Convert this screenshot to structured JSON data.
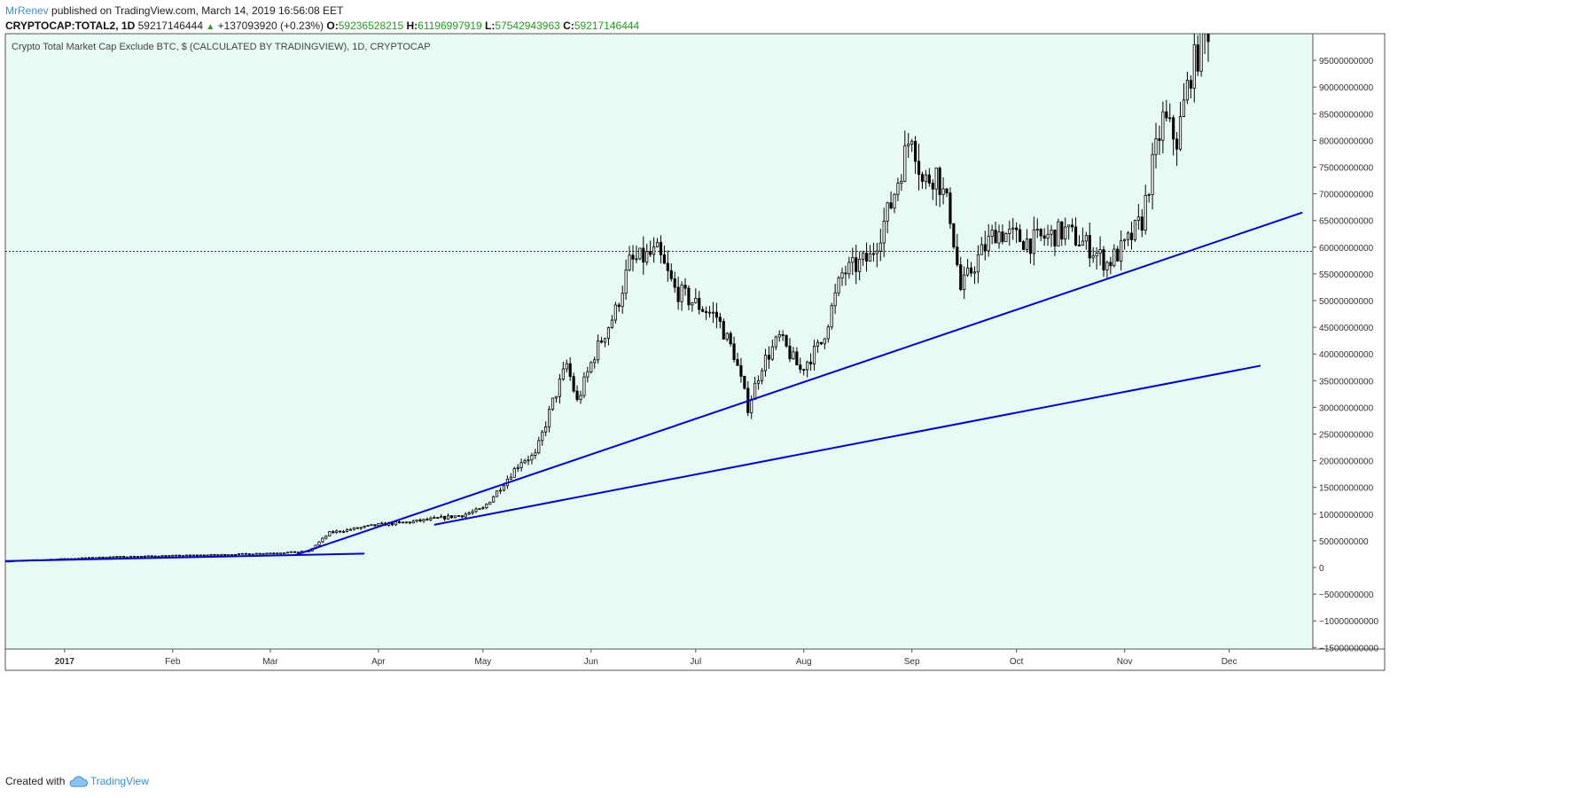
{
  "header": {
    "author": "MrRenev",
    "published_text": "published on TradingView.com, March 14, 2019 16:56:08 EET",
    "symbol": "CRYPTOCAP:TOTAL2, 1D",
    "last": "59217146444",
    "change": "+137093920 (+0.23%)",
    "o_label": "O:",
    "o_value": "59236528215",
    "h_label": "H:",
    "h_value": "61196997919",
    "l_label": "L:",
    "l_value": "57542943963",
    "c_label": "C:",
    "c_value": "59217146444"
  },
  "footer": {
    "created_with": "Created with",
    "brand": "TradingView"
  },
  "colors": {
    "chart_bg": "#e8fbf2",
    "candle": "#000000",
    "trendline": "#0000d8",
    "accent": "#3b8fd6",
    "up_text": "#1ca01c"
  },
  "chart_data": {
    "type": "candlestick",
    "title": "Crypto Total Market Cap Exclude BTC, $ (CALCULATED BY TRADINGVIEW), 1D, CRYPTOCAP",
    "y_ticks": [
      "95000000000",
      "90000000000",
      "85000000000",
      "80000000000",
      "75000000000",
      "70000000000",
      "65000000000",
      "60000000000",
      "55000000000",
      "50000000000",
      "45000000000",
      "40000000000",
      "35000000000",
      "30000000000",
      "25000000000",
      "20000000000",
      "15000000000",
      "10000000000",
      "5000000000",
      "0",
      "−5000000000",
      "−10000000000",
      "−15000000000"
    ],
    "x_ticks": [
      "2017",
      "Feb",
      "Mar",
      "Apr",
      "May",
      "Jun",
      "Jul",
      "Aug",
      "Sep",
      "Oct",
      "Nov",
      "Dec"
    ],
    "x_tick_dates": [
      "2017-01-01",
      "2017-02-01",
      "2017-03-01",
      "2017-04-01",
      "2017-05-01",
      "2017-06-01",
      "2017-07-01",
      "2017-08-01",
      "2017-09-01",
      "2017-10-01",
      "2017-11-01",
      "2017-12-01"
    ],
    "ylim": [
      -15000000000,
      100000000000
    ],
    "xlim": [
      "2016-12-15",
      "2017-12-25"
    ],
    "price_line": 59217146444,
    "anchors": [
      [
        "2016-12-15",
        1.2
      ],
      [
        "2017-01-15",
        2.0
      ],
      [
        "2017-02-15",
        2.4
      ],
      [
        "2017-03-05",
        2.8
      ],
      [
        "2017-03-12",
        3.0
      ],
      [
        "2017-03-18",
        6.5
      ],
      [
        "2017-04-01",
        8.0
      ],
      [
        "2017-04-10",
        8.5
      ],
      [
        "2017-04-25",
        9.8
      ],
      [
        "2017-05-01",
        11.0
      ],
      [
        "2017-05-06",
        15.0
      ],
      [
        "2017-05-12",
        20.0
      ],
      [
        "2017-05-16",
        21.0
      ],
      [
        "2017-05-21",
        31.0
      ],
      [
        "2017-05-25",
        38.0
      ],
      [
        "2017-05-28",
        31.0
      ],
      [
        "2017-06-02",
        40.0
      ],
      [
        "2017-06-08",
        48.0
      ],
      [
        "2017-06-12",
        57.0
      ],
      [
        "2017-06-20",
        59.0
      ],
      [
        "2017-06-25",
        52.0
      ],
      [
        "2017-07-02",
        49.0
      ],
      [
        "2017-07-07",
        47.0
      ],
      [
        "2017-07-12",
        40.0
      ],
      [
        "2017-07-16",
        30.0
      ],
      [
        "2017-07-20",
        38.0
      ],
      [
        "2017-07-25",
        43.0
      ],
      [
        "2017-07-31",
        37.0
      ],
      [
        "2017-08-06",
        42.0
      ],
      [
        "2017-08-12",
        55.0
      ],
      [
        "2017-08-20",
        58.0
      ],
      [
        "2017-08-26",
        68.0
      ],
      [
        "2017-09-01",
        82.0
      ],
      [
        "2017-09-04",
        72.0
      ],
      [
        "2017-09-08",
        74.0
      ],
      [
        "2017-09-12",
        66.0
      ],
      [
        "2017-09-15",
        52.0
      ],
      [
        "2017-09-20",
        58.0
      ],
      [
        "2017-09-25",
        63.0
      ],
      [
        "2017-10-05",
        61.0
      ],
      [
        "2017-10-15",
        63.0
      ],
      [
        "2017-10-22",
        60.0
      ],
      [
        "2017-10-27",
        57.0
      ],
      [
        "2017-11-01",
        60.0
      ],
      [
        "2017-11-06",
        65.0
      ],
      [
        "2017-11-08",
        72.0
      ],
      [
        "2017-11-12",
        84.0
      ],
      [
        "2017-11-16",
        80.0
      ],
      [
        "2017-11-20",
        93.0
      ],
      [
        "2017-11-25",
        101.0
      ]
    ],
    "trendlines": [
      {
        "from": [
          "2016-12-15",
          1.2
        ],
        "to": [
          "2017-03-28",
          2.6
        ]
      },
      {
        "from": [
          "2017-03-08",
          2.3
        ],
        "to": [
          "2017-12-22",
          66.5
        ]
      },
      {
        "from": [
          "2017-04-17",
          8.0
        ],
        "to": [
          "2017-12-10",
          37.8
        ]
      }
    ]
  }
}
